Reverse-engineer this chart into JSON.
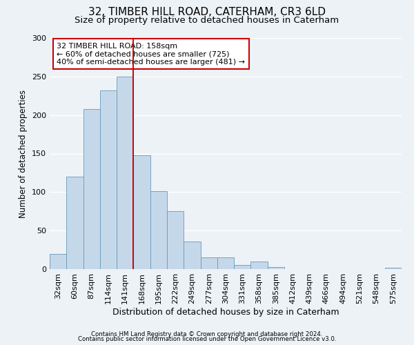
{
  "title": "32, TIMBER HILL ROAD, CATERHAM, CR3 6LD",
  "subtitle": "Size of property relative to detached houses in Caterham",
  "xlabel": "Distribution of detached houses by size in Caterham",
  "ylabel": "Number of detached properties",
  "bar_color": "#c5d8ea",
  "bar_edge_color": "#6699bb",
  "bar_width": 1.0,
  "categories": [
    "32sqm",
    "60sqm",
    "87sqm",
    "114sqm",
    "141sqm",
    "168sqm",
    "195sqm",
    "222sqm",
    "249sqm",
    "277sqm",
    "304sqm",
    "331sqm",
    "358sqm",
    "385sqm",
    "412sqm",
    "439sqm",
    "466sqm",
    "494sqm",
    "521sqm",
    "548sqm",
    "575sqm"
  ],
  "values": [
    20,
    120,
    208,
    232,
    250,
    148,
    101,
    75,
    36,
    15,
    15,
    5,
    10,
    3,
    0,
    0,
    0,
    0,
    0,
    0,
    2
  ],
  "vline_x": 4.5,
  "vline_color": "#cc0000",
  "ylim": [
    0,
    300
  ],
  "yticks": [
    0,
    50,
    100,
    150,
    200,
    250,
    300
  ],
  "annotation_title": "32 TIMBER HILL ROAD: 158sqm",
  "annotation_line1": "← 60% of detached houses are smaller (725)",
  "annotation_line2": "40% of semi-detached houses are larger (481) →",
  "annotation_box_color": "#ffffff",
  "annotation_box_edge": "#cc0000",
  "footer1": "Contains HM Land Registry data © Crown copyright and database right 2024.",
  "footer2": "Contains public sector information licensed under the Open Government Licence v3.0.",
  "background_color": "#edf2f7",
  "grid_color": "#ffffff",
  "title_fontsize": 11,
  "subtitle_fontsize": 9.5
}
